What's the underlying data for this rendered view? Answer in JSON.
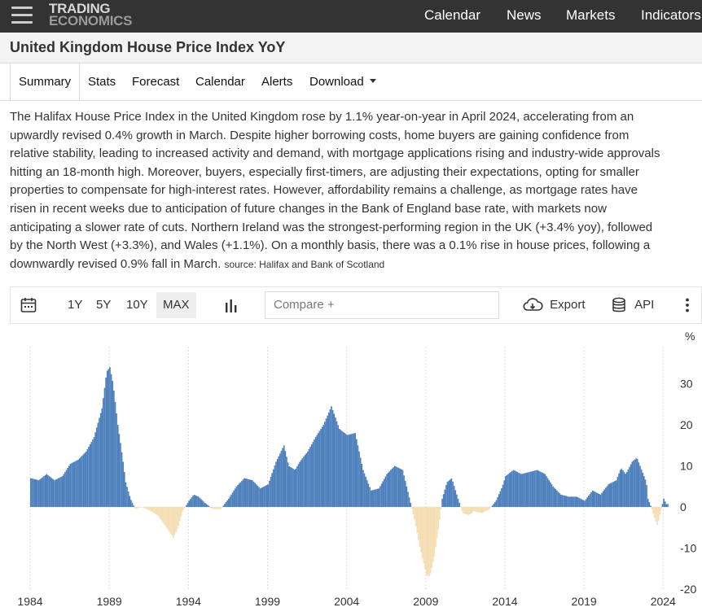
{
  "nav": {
    "logo_line1": "TRADING",
    "logo_line2": "ECONOMICS",
    "links": [
      "Calendar",
      "News",
      "Markets",
      "Indicators"
    ]
  },
  "page": {
    "title": "United Kingdom House Price Index YoY"
  },
  "tabs": {
    "summary": "Summary",
    "stats": "Stats",
    "forecast": "Forecast",
    "calendar": "Calendar",
    "alerts": "Alerts",
    "download": "Download"
  },
  "description": {
    "lines": [
      "The Halifax House Price Index in the United Kingdom rose by 1.1% year-on-year in April 2024, accelerating from an",
      "upwardly revised 0.4% growth in March. Despite higher borrowing costs, home buyers are gaining confidence from",
      "relative stability, leading to increased activity and demand, with mortgage applications rising and industry-wide approvals",
      "hitting an 18-month high. Moreover, buyers, especially first-timers, are adjusting their expectations, opting for smaller",
      "properties to compensate for high-interest rates. However, affordability remains a challenge, as mortgage rates have",
      "risen in recent weeks due to anticipation of future changes in the Bank of England base rate, with markets now",
      "anticipating a slower rate of cuts. Northern Ireland was the strongest-performing region in the UK (+3.4% yoy), followed",
      "by the North West (+3.3%), and Wales (+1.1%). On a monthly basis, there was a 0.1% rise in house prices, following a",
      "downwardly revised 0.9% fall in March."
    ],
    "source": "source: Halifax and Bank of Scotland"
  },
  "toolbar": {
    "ranges": [
      "1Y",
      "5Y",
      "10Y",
      "MAX"
    ],
    "selected_range": "MAX",
    "compare_placeholder": "Compare +",
    "export_label": "Export",
    "api_label": "API"
  },
  "chart_data": {
    "type": "bar",
    "unit_label": "%",
    "positive_color": "#4f81bd",
    "negative_color": "#f5deb3",
    "x_ticks": [
      "1984",
      "1989",
      "1994",
      "1999",
      "2004",
      "2009",
      "2014",
      "2019",
      "2024"
    ],
    "y_ticks": [
      30,
      20,
      10,
      0,
      -10,
      -20
    ],
    "ylim": [
      -21,
      37
    ],
    "x_range": [
      1984.0,
      2024.5
    ],
    "grid": "vertical",
    "series": [
      {
        "points": [
          [
            1984.0,
            7
          ],
          [
            1984.5,
            6.5
          ],
          [
            1985.0,
            8
          ],
          [
            1985.5,
            6.5
          ],
          [
            1986.0,
            7.5
          ],
          [
            1986.5,
            10.5
          ],
          [
            1987.0,
            11.5
          ],
          [
            1987.5,
            13.5
          ],
          [
            1988.0,
            17
          ],
          [
            1988.5,
            24
          ],
          [
            1988.8,
            33
          ],
          [
            1989.0,
            34
          ],
          [
            1989.2,
            30
          ],
          [
            1989.5,
            20
          ],
          [
            1989.8,
            12
          ],
          [
            1990.0,
            6
          ],
          [
            1990.3,
            2
          ],
          [
            1990.6,
            -0.5
          ],
          [
            1991.0,
            0
          ],
          [
            1991.3,
            -0.5
          ],
          [
            1991.6,
            -1
          ],
          [
            1992.0,
            -2
          ],
          [
            1992.5,
            -4.5
          ],
          [
            1993.0,
            -7.5
          ],
          [
            1993.3,
            -5
          ],
          [
            1993.6,
            -1
          ],
          [
            1994.0,
            1.5
          ],
          [
            1994.3,
            3
          ],
          [
            1994.6,
            2.5
          ],
          [
            1995.0,
            1
          ],
          [
            1995.5,
            -0.5
          ],
          [
            1996.0,
            -0.5
          ],
          [
            1996.5,
            2
          ],
          [
            1997.0,
            5
          ],
          [
            1997.5,
            7
          ],
          [
            1998.0,
            6.5
          ],
          [
            1998.5,
            4.5
          ],
          [
            1999.0,
            5.5
          ],
          [
            1999.5,
            11
          ],
          [
            2000.0,
            15
          ],
          [
            2000.3,
            10
          ],
          [
            2000.7,
            9
          ],
          [
            2001.0,
            11
          ],
          [
            2001.5,
            13.5
          ],
          [
            2002.0,
            17
          ],
          [
            2002.5,
            20
          ],
          [
            2003.0,
            24.5
          ],
          [
            2003.5,
            19
          ],
          [
            2004.0,
            17.5
          ],
          [
            2004.5,
            18
          ],
          [
            2005.0,
            9
          ],
          [
            2005.5,
            4
          ],
          [
            2006.0,
            4.5
          ],
          [
            2006.5,
            8
          ],
          [
            2007.0,
            10
          ],
          [
            2007.5,
            9
          ],
          [
            2008.0,
            1
          ],
          [
            2008.3,
            -4
          ],
          [
            2008.6,
            -10
          ],
          [
            2009.0,
            -16.5
          ],
          [
            2009.2,
            -17
          ],
          [
            2009.5,
            -12
          ],
          [
            2009.8,
            -4
          ],
          [
            2010.0,
            2
          ],
          [
            2010.3,
            6
          ],
          [
            2010.6,
            7
          ],
          [
            2011.0,
            2
          ],
          [
            2011.3,
            -1.5
          ],
          [
            2011.7,
            -2
          ],
          [
            2012.0,
            -1
          ],
          [
            2012.5,
            -1.5
          ],
          [
            2013.0,
            -0.5
          ],
          [
            2013.4,
            1.5
          ],
          [
            2013.8,
            5
          ],
          [
            2014.0,
            7.5
          ],
          [
            2014.5,
            9
          ],
          [
            2015.0,
            8
          ],
          [
            2015.5,
            8.5
          ],
          [
            2016.0,
            9
          ],
          [
            2016.5,
            8
          ],
          [
            2017.0,
            5
          ],
          [
            2017.5,
            3
          ],
          [
            2018.0,
            2.5
          ],
          [
            2018.5,
            2.5
          ],
          [
            2019.0,
            1.5
          ],
          [
            2019.5,
            4
          ],
          [
            2020.0,
            3
          ],
          [
            2020.5,
            5.5
          ],
          [
            2021.0,
            6.5
          ],
          [
            2021.3,
            9.5
          ],
          [
            2021.6,
            8
          ],
          [
            2022.0,
            11
          ],
          [
            2022.3,
            12
          ],
          [
            2022.6,
            9
          ],
          [
            2022.9,
            6
          ],
          [
            2023.0,
            2
          ],
          [
            2023.2,
            0
          ],
          [
            2023.4,
            -2.5
          ],
          [
            2023.6,
            -4.5
          ],
          [
            2023.8,
            -1
          ],
          [
            2024.0,
            2
          ],
          [
            2024.2,
            0.4
          ],
          [
            2024.3,
            1.1
          ]
        ]
      }
    ]
  }
}
